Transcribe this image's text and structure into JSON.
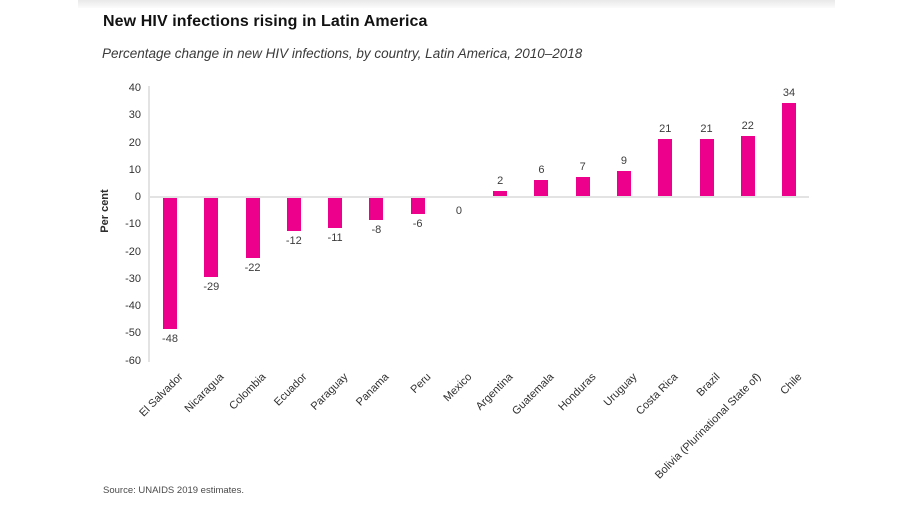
{
  "header": {
    "title": "New HIV infections rising in Latin America",
    "subtitle": "Percentage change in new HIV infections, by country, Latin America, 2010–2018"
  },
  "chart_data": {
    "type": "bar",
    "title": "New HIV infections rising in Latin America",
    "subtitle": "Percentage change in new HIV infections, by country, Latin America, 2010–2018",
    "xlabel": "",
    "ylabel": "Per cent",
    "ylim": [
      -60,
      40
    ],
    "yticks": [
      40,
      30,
      20,
      10,
      0,
      -10,
      -20,
      -30,
      -40,
      -50,
      -60
    ],
    "categories": [
      "El Salvador",
      "Nicaragua",
      "Colombia",
      "Ecuador",
      "Paraguay",
      "Panama",
      "Peru",
      "Mexico",
      "Argentina",
      "Guatemala",
      "Honduras",
      "Uruguay",
      "Costa Rica",
      "Brazil",
      "Bolivia (Plurinational State of)",
      "Chile"
    ],
    "values": [
      -48,
      -29,
      -22,
      -12,
      -11,
      -8,
      -6,
      0,
      2,
      6,
      7,
      9,
      21,
      21,
      22,
      34
    ],
    "data_labels": [
      "-48",
      "-29",
      "-22",
      "-12",
      "-11",
      "-8",
      "-6",
      "0",
      "2",
      "6",
      "7",
      "9",
      "21",
      "21",
      "22",
      "34"
    ],
    "bar_color": "#EC008C",
    "grid": false,
    "legend": "none"
  },
  "footer": {
    "source": "Source: UNAIDS 2019 estimates."
  }
}
